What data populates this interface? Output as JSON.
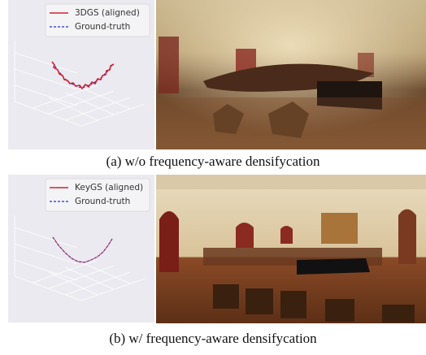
{
  "panels": [
    {
      "legend": [
        "3DGS (aligned)",
        "Ground-truth"
      ],
      "caption": "(a) w/o frequency-aware densifycation"
    },
    {
      "legend": [
        "KeyGS (aligned)",
        "Ground-truth"
      ],
      "caption": "(b) w/ frequency-aware densifycation"
    }
  ]
}
